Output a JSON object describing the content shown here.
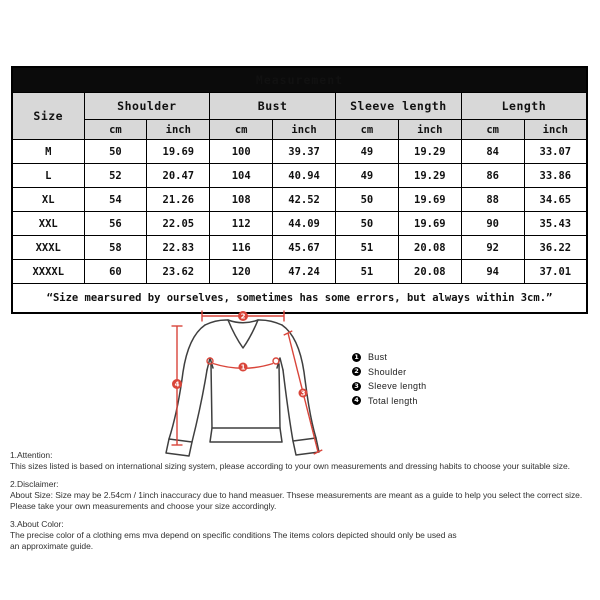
{
  "table": {
    "title": "Measurement",
    "size_header": "Size",
    "groups": [
      {
        "label": "Shoulder"
      },
      {
        "label": "Bust"
      },
      {
        "label": "Sleeve length"
      },
      {
        "label": "Length"
      }
    ],
    "unit_cm": "cm",
    "unit_inch": "inch",
    "rows": [
      {
        "size": "M",
        "values": [
          "50",
          "19.69",
          "100",
          "39.37",
          "49",
          "19.29",
          "84",
          "33.07"
        ]
      },
      {
        "size": "L",
        "values": [
          "52",
          "20.47",
          "104",
          "40.94",
          "49",
          "19.29",
          "86",
          "33.86"
        ]
      },
      {
        "size": "XL",
        "values": [
          "54",
          "21.26",
          "108",
          "42.52",
          "50",
          "19.69",
          "88",
          "34.65"
        ]
      },
      {
        "size": "XXL",
        "values": [
          "56",
          "22.05",
          "112",
          "44.09",
          "50",
          "19.69",
          "90",
          "35.43"
        ]
      },
      {
        "size": "XXXL",
        "values": [
          "58",
          "22.83",
          "116",
          "45.67",
          "51",
          "20.08",
          "92",
          "36.22"
        ]
      },
      {
        "size": "XXXXL",
        "values": [
          "60",
          "23.62",
          "120",
          "47.24",
          "51",
          "20.08",
          "94",
          "37.01"
        ]
      }
    ],
    "note": "“Size mearsured by ourselves, sometimes has some errors, but always within 3cm.”"
  },
  "diagram": {
    "legend": [
      {
        "num": "1",
        "label": "Bust"
      },
      {
        "num": "2",
        "label": "Shoulder"
      },
      {
        "num": "3",
        "label": "Sleeve length"
      },
      {
        "num": "4",
        "label": "Total length"
      }
    ]
  },
  "colors": {
    "measure_red": "#d9453a",
    "outline_gray": "#3f3f3f",
    "header_gray": "#d8d8d8",
    "band_black": "#0b0b0b"
  },
  "sections": [
    {
      "heading": "1.Attention:",
      "lines": [
        "This sizes listed is based on international sizing system, please according to your own measurements and dressing habits to choose your suitable size."
      ]
    },
    {
      "heading": "2.Disclaimer:",
      "lines": [
        "About Size: Size may be 2.54cm / 1inch inaccuracy due to hand measuer. Thsese measurements are meant as a guide to help you select the correct size.",
        "Please take your own measurements and choose your size accordingly."
      ]
    },
    {
      "heading": "3.About Color:",
      "lines": [
        "The precise color of a clothing ems mva depend on specific conditions The items colors depicted should only be used as",
        "an approximate guide."
      ]
    }
  ]
}
